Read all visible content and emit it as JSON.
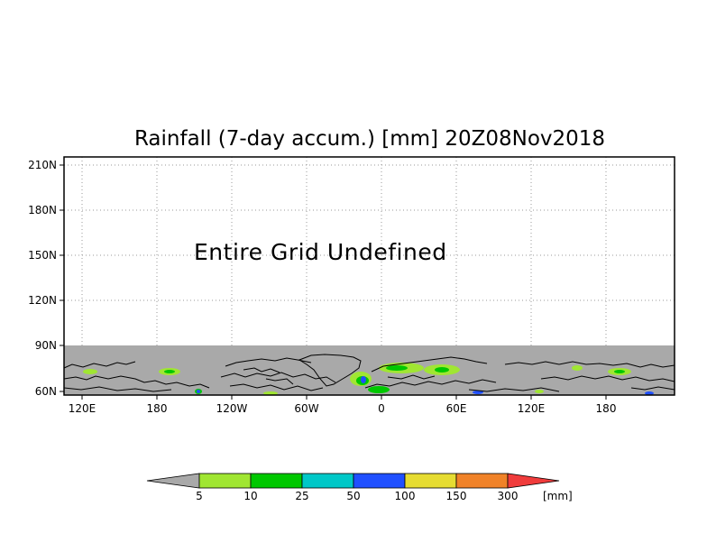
{
  "title": "Rainfall (7-day accum.) [mm] 20Z08Nov2018",
  "message": "Entire Grid Undefined",
  "lat_ticks": [
    "210N",
    "180N",
    "150N",
    "120N",
    "90N",
    "60N"
  ],
  "lon_ticks": [
    "120E",
    "180",
    "120W",
    "60W",
    "0",
    "60E",
    "120E",
    "180"
  ],
  "colors": {
    "undefined": "#a9a9a9",
    "land_outline": "#000000",
    "grid": "#9a9a9a"
  },
  "colorbar": {
    "unit": "[mm]",
    "levels": [
      "5",
      "10",
      "25",
      "50",
      "100",
      "150",
      "300"
    ],
    "colors": [
      "#a9a9a9",
      "#a0e632",
      "#00c800",
      "#00c8c8",
      "#2050ff",
      "#e6dc32",
      "#f08228",
      "#f03c3c"
    ]
  }
}
